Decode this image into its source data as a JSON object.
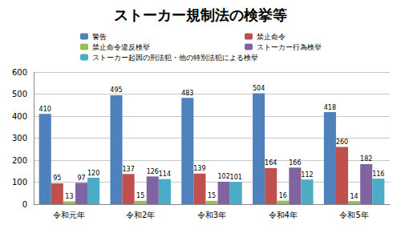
{
  "chart_data": {
    "type": "bar",
    "title": "ストーカー規制法の検挙等",
    "categories": [
      "令和元年",
      "令和2年",
      "令和3年",
      "令和4年",
      "令和5年"
    ],
    "series": [
      {
        "name": "警告",
        "color": "#4f81bd",
        "values": [
          410,
          495,
          483,
          504,
          418
        ]
      },
      {
        "name": "禁止命令",
        "color": "#c0504d",
        "values": [
          95,
          137,
          139,
          164,
          260
        ]
      },
      {
        "name": "禁止命令違反検挙",
        "color": "#9bbb59",
        "values": [
          13,
          15,
          15,
          16,
          14
        ]
      },
      {
        "name": "ストーカー行為検挙",
        "color": "#8064a2",
        "values": [
          97,
          126,
          102,
          166,
          182
        ]
      },
      {
        "name": "ストーカー起因の刑法犯・他の特別法犯による検挙",
        "color": "#4bacc6",
        "values": [
          120,
          114,
          101,
          112,
          116
        ]
      }
    ],
    "ylim": [
      0,
      600
    ],
    "yticks": [
      0,
      100,
      200,
      300,
      400,
      500,
      600
    ],
    "grid": true,
    "data_labels": true,
    "legend": "top"
  }
}
